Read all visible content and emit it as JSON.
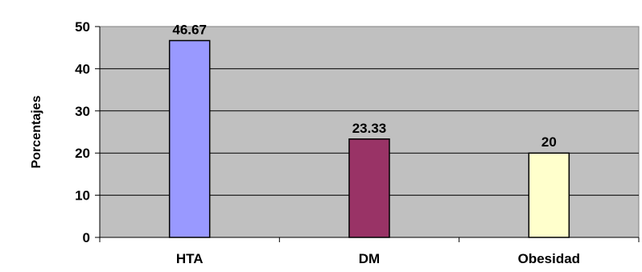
{
  "chart_data": {
    "type": "bar",
    "categories": [
      "HTA",
      "DM",
      "Obesidad"
    ],
    "values": [
      46.67,
      23.33,
      20
    ],
    "data_labels": [
      "46.67",
      "23.33",
      "20"
    ],
    "bar_colors": [
      "#9999ff",
      "#993366",
      "#ffffcc"
    ],
    "plot_background": "#c0c0c0",
    "xlabel": "",
    "ylabel": "Porcentajes",
    "ylim": [
      0,
      50
    ],
    "yticks": [
      0,
      10,
      20,
      30,
      40,
      50
    ],
    "y_tick_labels": [
      "0",
      "10",
      "20",
      "30",
      "40",
      "50"
    ],
    "grid": true,
    "legend": "none"
  }
}
